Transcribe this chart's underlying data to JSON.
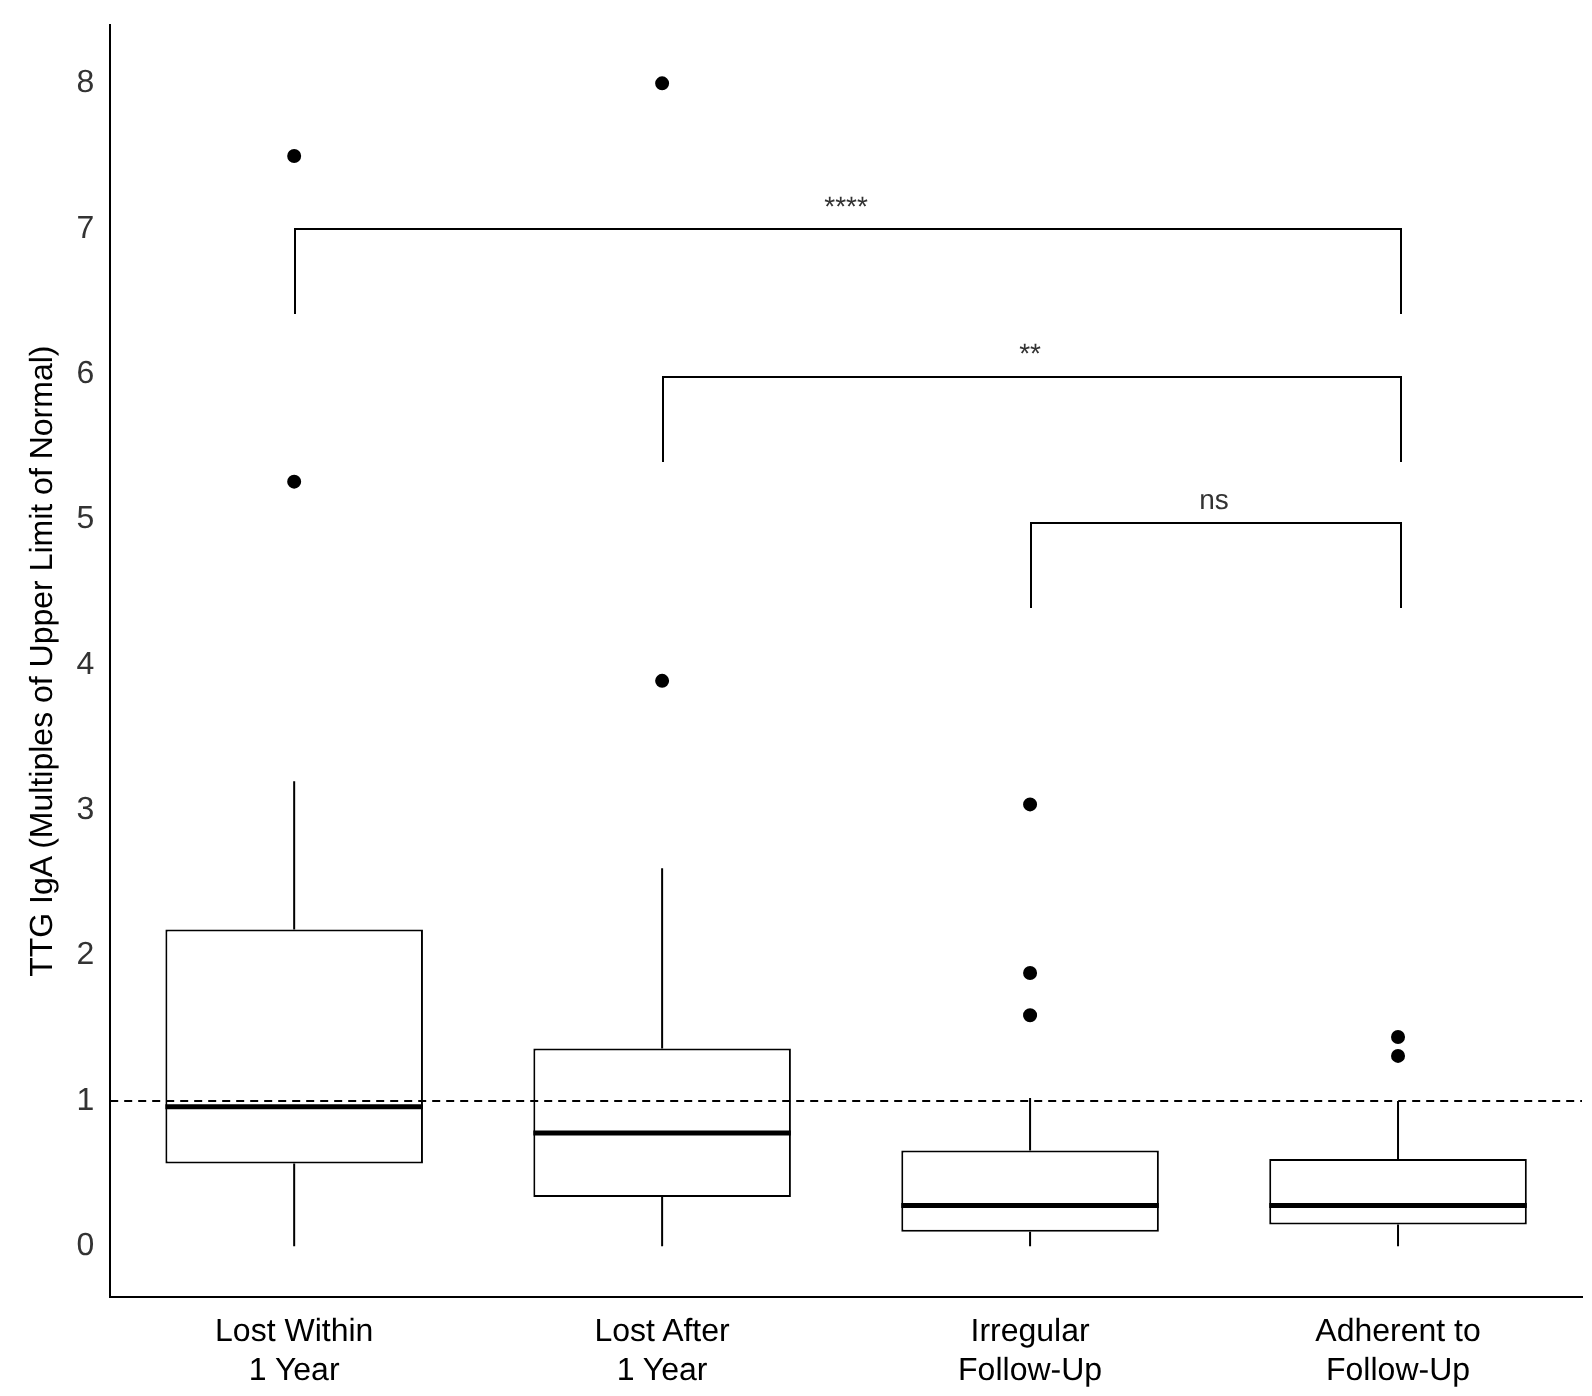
{
  "chart_data": {
    "type": "box",
    "ylabel": "TTG IgA (Multiples of Upper Limit of Normal)",
    "categories": [
      "Lost Within\n1 Year",
      "Lost After\n1 Year",
      "Irregular\nFollow-Up",
      "Adherent to\nFollow-Up"
    ],
    "boxes": [
      {
        "low": 0,
        "q1": 0.57,
        "median": 0.96,
        "q3": 2.18,
        "high": 3.2,
        "outliers": [
          5.26,
          7.5
        ]
      },
      {
        "low": 0,
        "q1": 0.34,
        "median": 0.78,
        "q3": 1.36,
        "high": 2.6,
        "outliers": [
          3.89,
          8
        ]
      },
      {
        "low": 0,
        "q1": 0.1,
        "median": 0.28,
        "q3": 0.66,
        "high": 1.02,
        "outliers": [
          1.59,
          1.88,
          3.04
        ]
      },
      {
        "low": 0,
        "q1": 0.15,
        "median": 0.28,
        "q3": 0.6,
        "high": 1,
        "outliers": [
          1.31,
          1.44
        ]
      }
    ],
    "ylim": [
      -0.35,
      8.4
    ],
    "yticks": [
      0,
      1,
      2,
      3,
      4,
      5,
      6,
      7,
      8
    ],
    "grid": false,
    "legend": false,
    "ref_lines": [
      {
        "axis": "y",
        "value": 1,
        "color": "#000000",
        "line_style": "dashed"
      }
    ],
    "annotations": [
      "****",
      "**",
      "ns"
    ]
  }
}
